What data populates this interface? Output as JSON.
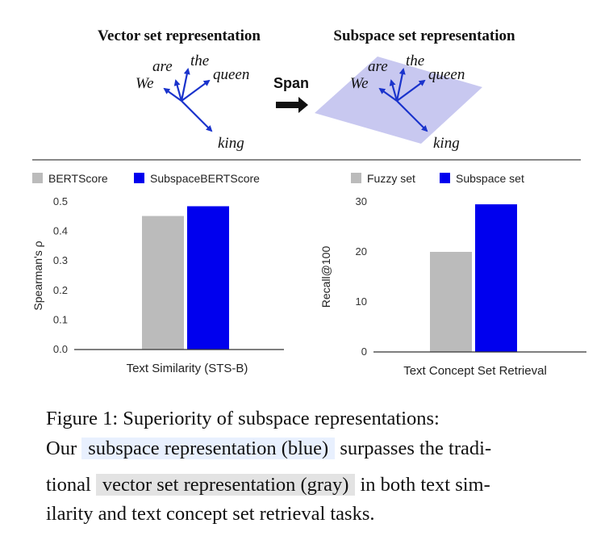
{
  "diagram": {
    "left_title": "Vector set representation",
    "right_title": "Subspace set representation",
    "span_label": "Span",
    "words": {
      "we": "We",
      "are": "are",
      "the": "the",
      "queen": "queen",
      "king": "king"
    },
    "arrow_color": "#1a33cc",
    "plane_color": "#c8c8f0",
    "divider_color": "#888888"
  },
  "chart_data": [
    {
      "type": "bar",
      "categories": [
        "Text Similarity (STS-B)"
      ],
      "series": [
        {
          "name": "BERTScore",
          "values": [
            0.452
          ],
          "color": "#bbbbbb"
        },
        {
          "name": "SubspaceBERTScore",
          "values": [
            0.485
          ],
          "color": "#0000ee"
        }
      ],
      "xlabel": "Text Similarity (STS-B)",
      "ylabel": "Spearman's ρ",
      "ylim": [
        0,
        0.5
      ],
      "yticks": [
        "0.0",
        "0.1",
        "0.2",
        "0.3",
        "0.4",
        "0.5"
      ],
      "grid": false,
      "legend": "top-left"
    },
    {
      "type": "bar",
      "categories": [
        "Text Concept Set Retrieval"
      ],
      "series": [
        {
          "name": "Fuzzy set",
          "values": [
            20
          ],
          "color": "#bbbbbb"
        },
        {
          "name": "Subspace set",
          "values": [
            29.5
          ],
          "color": "#0000ee"
        }
      ],
      "xlabel": "Text Concept Set Retrieval",
      "ylabel": "Recall@100",
      "ylim": [
        0,
        30
      ],
      "yticks": [
        "0",
        "10",
        "20",
        "30"
      ],
      "grid": false,
      "legend": "top-left"
    }
  ],
  "caption": {
    "line1": "Figure 1:  Superiority of subspace representations:",
    "line2_a": "Our",
    "line2_hl": "subspace representation (blue)",
    "line2_b": "surpasses the tradi-",
    "line3_a": "tional",
    "line3_hl": "vector set representation (gray)",
    "line3_b": "in both text sim-",
    "line4": "ilarity and text concept set retrieval tasks."
  }
}
